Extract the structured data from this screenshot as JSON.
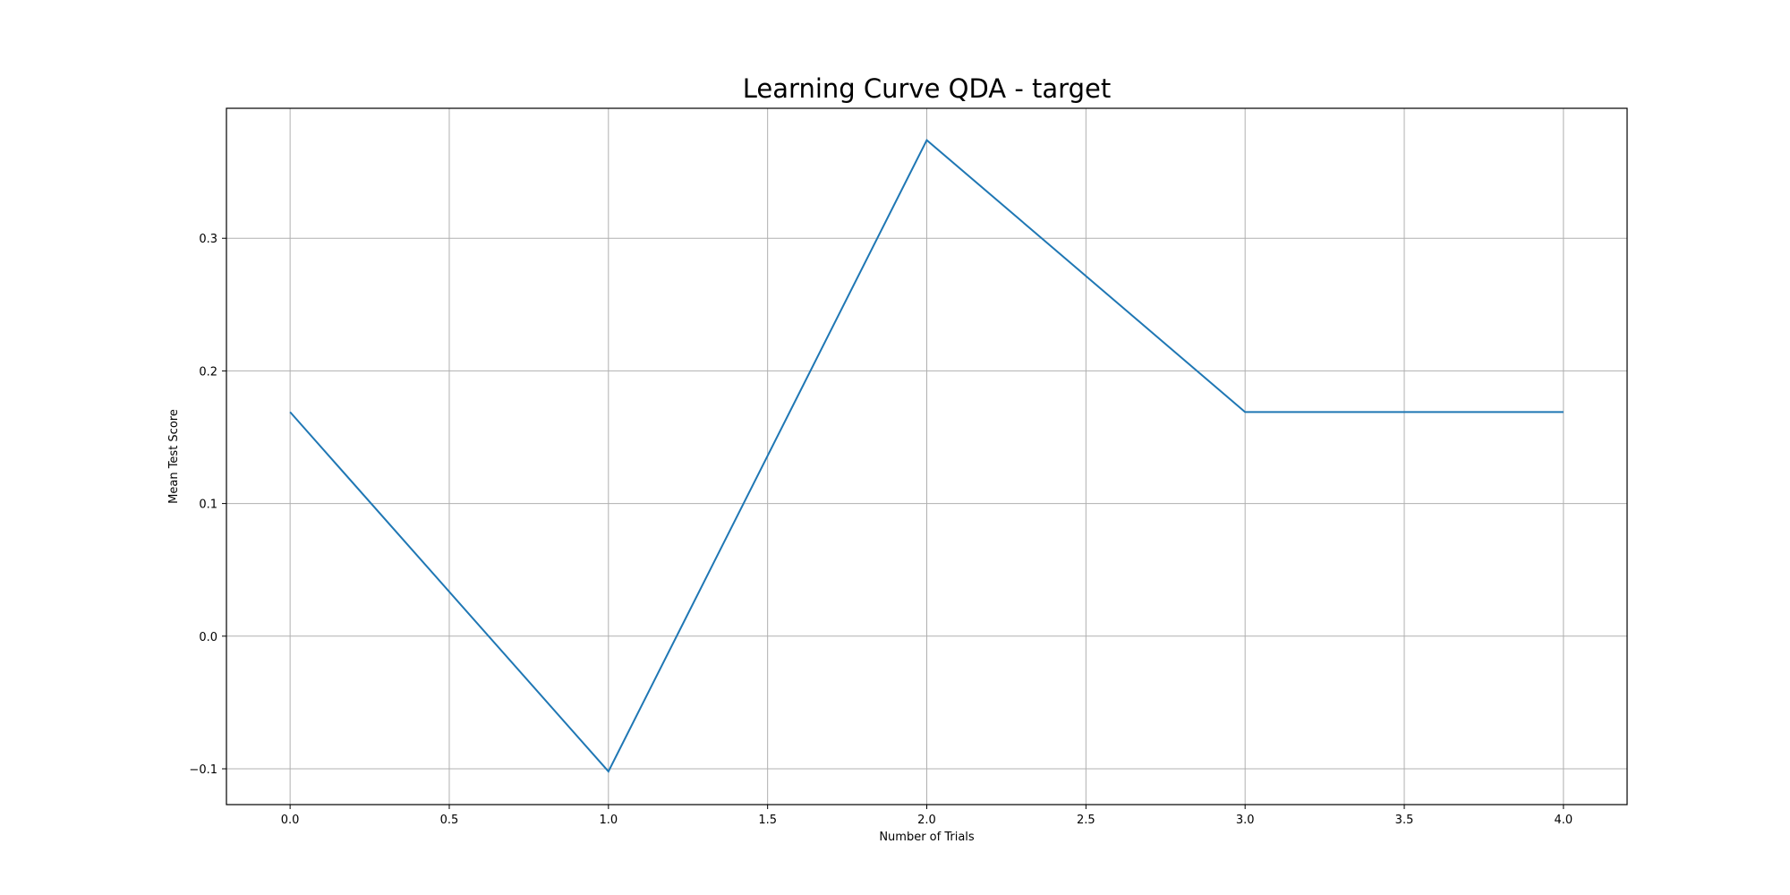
{
  "chart_data": {
    "type": "line",
    "title": "Learning Curve QDA - target",
    "xlabel": "Number of Trials",
    "ylabel": "Mean Test Score",
    "xlim": [
      -0.2,
      4.2
    ],
    "ylim": [
      -0.127,
      0.398
    ],
    "xticks": [
      0.0,
      0.5,
      1.0,
      1.5,
      2.0,
      2.5,
      3.0,
      3.5,
      4.0
    ],
    "xtick_labels": [
      "0.0",
      "0.5",
      "1.0",
      "1.5",
      "2.0",
      "2.5",
      "3.0",
      "3.5",
      "4.0"
    ],
    "yticks": [
      -0.1,
      0.0,
      0.1,
      0.2,
      0.3
    ],
    "ytick_labels": [
      "−0.1",
      "0.0",
      "0.1",
      "0.2",
      "0.3"
    ],
    "grid": true,
    "series": [
      {
        "x": [
          0,
          1,
          2,
          3,
          4
        ],
        "values": [
          0.169,
          -0.102,
          0.374,
          0.169,
          0.169
        ],
        "color": "#1f77b4"
      }
    ]
  }
}
